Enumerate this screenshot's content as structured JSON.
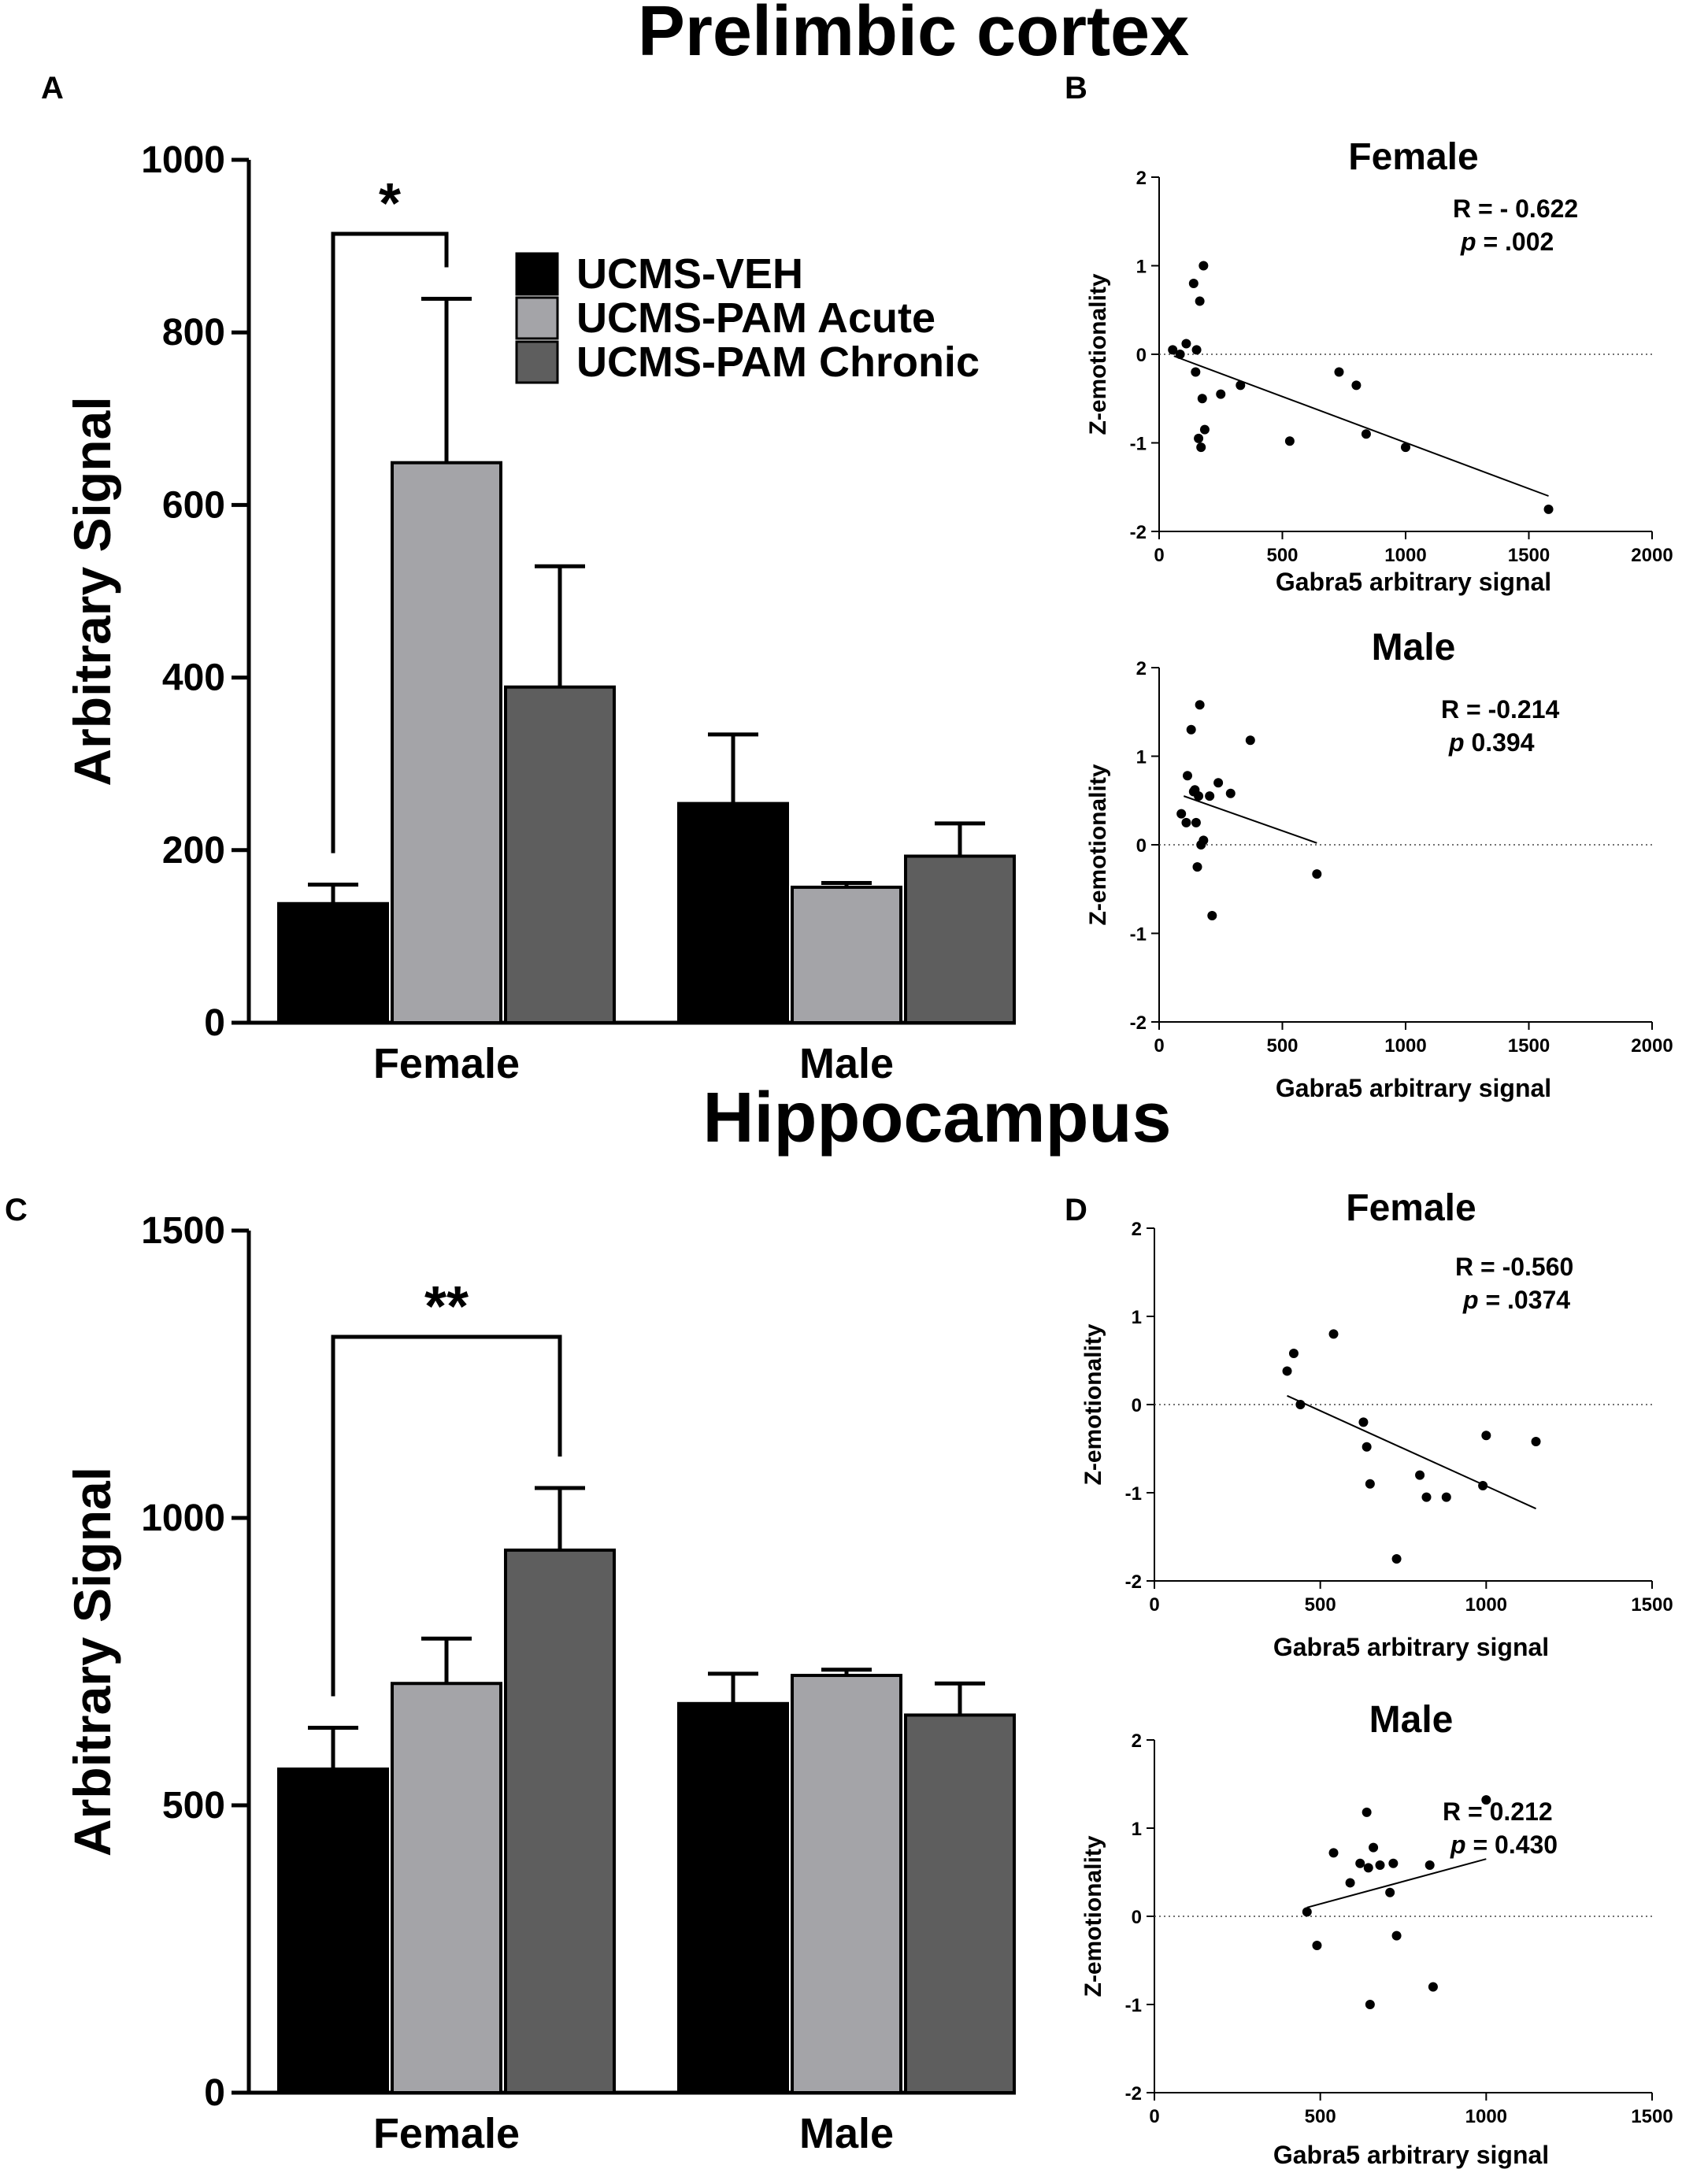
{
  "figure": {
    "title_top": "Prelimbic cortex",
    "title_bottom": "Hippocampus",
    "colors": {
      "veh": "#000000",
      "acute": "#a4a4a8",
      "chronic": "#5e5e5e",
      "point": "#000000"
    }
  },
  "chart_data": [
    {
      "id": "A",
      "panel_label": "A",
      "type": "bar",
      "title": "Prelimbic cortex",
      "xlabel": "",
      "ylabel": "Arbitrary  Signal",
      "ylim": [
        0,
        1000
      ],
      "yticks": [
        "0",
        "200",
        "400",
        "600",
        "800",
        "1000"
      ],
      "categories": [
        "Female",
        "Male"
      ],
      "series": [
        {
          "name": "UCMS-VEH",
          "values": [
            138,
            254
          ],
          "errors": [
            22,
            80
          ]
        },
        {
          "name": "UCMS-PAM Acute",
          "values": [
            649,
            157
          ],
          "errors": [
            190,
            5
          ]
        },
        {
          "name": "UCMS-PAM Chronic",
          "values": [
            389,
            193
          ],
          "errors": [
            140,
            38
          ]
        }
      ],
      "significance": {
        "label": "*",
        "from_series": 0,
        "to_series": 1,
        "category": 0
      },
      "legend": {
        "position": "top-center",
        "entries": [
          "UCMS-VEH",
          "UCMS-PAM Acute",
          "UCMS-PAM Chronic"
        ]
      }
    },
    {
      "id": "B1",
      "panel_label": "B",
      "type": "scatter",
      "title": "Female",
      "xlabel": "Gabra5 arbitrary signal",
      "ylabel": "Z-emotionality",
      "xlim": [
        0,
        2000
      ],
      "ylim": [
        -2,
        2
      ],
      "xticks": [
        "0",
        "500",
        "1000",
        "1500",
        "2000"
      ],
      "yticks": [
        "-2",
        "-1",
        "0",
        "1",
        "2"
      ],
      "stats": {
        "r": "R = - 0.622",
        "p_label": "p",
        "p_value": " =  .002"
      },
      "fit": {
        "x": [
          60,
          1580
        ],
        "y": [
          -0.02,
          -1.6
        ]
      },
      "points": {
        "x": [
          55,
          85,
          110,
          140,
          148,
          152,
          160,
          165,
          170,
          175,
          180,
          185,
          250,
          330,
          530,
          730,
          800,
          840,
          1000,
          1580
        ],
        "y": [
          0.05,
          0.0,
          0.12,
          0.8,
          -0.2,
          0.05,
          -0.95,
          0.6,
          -1.05,
          -0.5,
          1.0,
          -0.85,
          -0.45,
          -0.35,
          -0.98,
          -0.2,
          -0.35,
          -0.9,
          -1.05,
          -1.75
        ]
      }
    },
    {
      "id": "B2",
      "panel_label": "",
      "type": "scatter",
      "title": "Male",
      "xlabel": "Gabra5 arbitrary signal",
      "ylabel": "Z-emotionality",
      "xlim": [
        0,
        2000
      ],
      "ylim": [
        -2,
        2
      ],
      "xticks": [
        "0",
        "500",
        "1000",
        "1500",
        "2000"
      ],
      "yticks": [
        "-2",
        "-1",
        "0",
        "1",
        "2"
      ],
      "stats": {
        "r": "R = -0.214",
        "p_label": "p",
        "p_value": "  0.394"
      },
      "fit": {
        "x": [
          100,
          640
        ],
        "y": [
          0.55,
          0.02
        ]
      },
      "points": {
        "x": [
          90,
          110,
          115,
          130,
          140,
          145,
          150,
          155,
          160,
          165,
          170,
          180,
          205,
          215,
          240,
          290,
          370,
          640
        ],
        "y": [
          0.35,
          0.25,
          0.78,
          1.3,
          0.6,
          0.62,
          0.25,
          -0.25,
          0.55,
          1.58,
          0.0,
          0.05,
          0.55,
          -0.8,
          0.7,
          0.58,
          1.18,
          -0.33
        ]
      }
    },
    {
      "id": "C",
      "panel_label": "C",
      "type": "bar",
      "title": "Hippocampus",
      "xlabel": "",
      "ylabel": "Arbitrary  Signal",
      "ylim": [
        0,
        1500
      ],
      "yticks": [
        "0",
        "500",
        "1000",
        "1500"
      ],
      "categories": [
        "Female",
        "Male"
      ],
      "series": [
        {
          "name": "UCMS-VEH",
          "values": [
            563,
            677
          ],
          "errors": [
            72,
            52
          ]
        },
        {
          "name": "UCMS-PAM Acute",
          "values": [
            712,
            726
          ],
          "errors": [
            78,
            10
          ]
        },
        {
          "name": "UCMS-PAM Chronic",
          "values": [
            944,
            657
          ],
          "errors": [
            108,
            55
          ]
        }
      ],
      "significance": {
        "label": "**",
        "from_series": 0,
        "to_series": 2,
        "category": 0
      }
    },
    {
      "id": "D1",
      "panel_label": "D",
      "type": "scatter",
      "title": "Female",
      "xlabel": "Gabra5 arbitrary signal",
      "ylabel": "Z-emotionality",
      "xlim": [
        0,
        1500
      ],
      "ylim": [
        -2,
        2
      ],
      "xticks": [
        "0",
        "500",
        "1000",
        "1500"
      ],
      "yticks": [
        "-2",
        "-1",
        "0",
        "1",
        "2"
      ],
      "stats": {
        "r": "R = -0.560",
        "p_label": "p",
        "p_value": " =  .0374"
      },
      "fit": {
        "x": [
          400,
          1150
        ],
        "y": [
          0.1,
          -1.18
        ]
      },
      "points": {
        "x": [
          400,
          420,
          440,
          540,
          630,
          640,
          650,
          800,
          820,
          880,
          990,
          1000,
          1150,
          730
        ],
        "y": [
          0.38,
          0.58,
          0.0,
          0.8,
          -0.2,
          -0.48,
          -0.9,
          -0.8,
          -1.05,
          -1.05,
          -0.92,
          -0.35,
          -0.42,
          -1.75
        ]
      }
    },
    {
      "id": "D2",
      "panel_label": "",
      "type": "scatter",
      "title": "Male",
      "xlabel": "Gabra5 arbitrary signal",
      "ylabel": "Z-emotionality",
      "xlim": [
        0,
        1500
      ],
      "ylim": [
        -2,
        2
      ],
      "xticks": [
        "0",
        "500",
        "1000",
        "1500"
      ],
      "yticks": [
        "-2",
        "-1",
        "0",
        "1",
        "2"
      ],
      "stats": {
        "r": "R = 0.212",
        "p_label": "p",
        "p_value": " =  0.430"
      },
      "fit": {
        "x": [
          460,
          1000
        ],
        "y": [
          0.1,
          0.65
        ]
      },
      "points": {
        "x": [
          460,
          490,
          540,
          590,
          620,
          640,
          645,
          650,
          660,
          680,
          710,
          720,
          730,
          830,
          840,
          1000
        ],
        "y": [
          0.05,
          -0.33,
          0.72,
          0.38,
          0.6,
          1.18,
          0.55,
          -1.0,
          0.78,
          0.58,
          0.27,
          0.6,
          -0.22,
          0.58,
          -0.8,
          1.32
        ]
      }
    }
  ]
}
